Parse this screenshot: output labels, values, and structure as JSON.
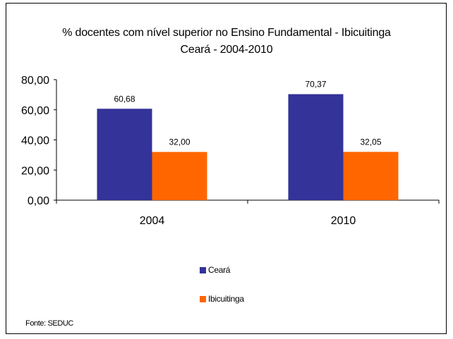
{
  "chart_data": {
    "type": "bar",
    "title": "% docentes com nível  superior no Ensino Fundamental  - Ibicuitinga",
    "subtitle": "Ceará - 2004-2010",
    "categories": [
      "2004",
      "2010"
    ],
    "series": [
      {
        "name": "Ceará",
        "values": [
          60.68,
          70.37
        ],
        "labels": [
          "60,68",
          "70,37"
        ],
        "color": "#333399"
      },
      {
        "name": "Ibicuitinga",
        "values": [
          32.0,
          32.05
        ],
        "labels": [
          "32,00",
          "32,05"
        ],
        "color": "#FF6600"
      }
    ],
    "ylim": [
      0,
      80
    ],
    "yticks": [
      0,
      20,
      40,
      60,
      80
    ],
    "ytick_labels": [
      "0,00",
      "20,00",
      "40,00",
      "60,00",
      "80,00"
    ],
    "xlabel": "",
    "ylabel": "",
    "grid": false,
    "legend_position": "bottom"
  },
  "source": "Fonte: SEDUC"
}
